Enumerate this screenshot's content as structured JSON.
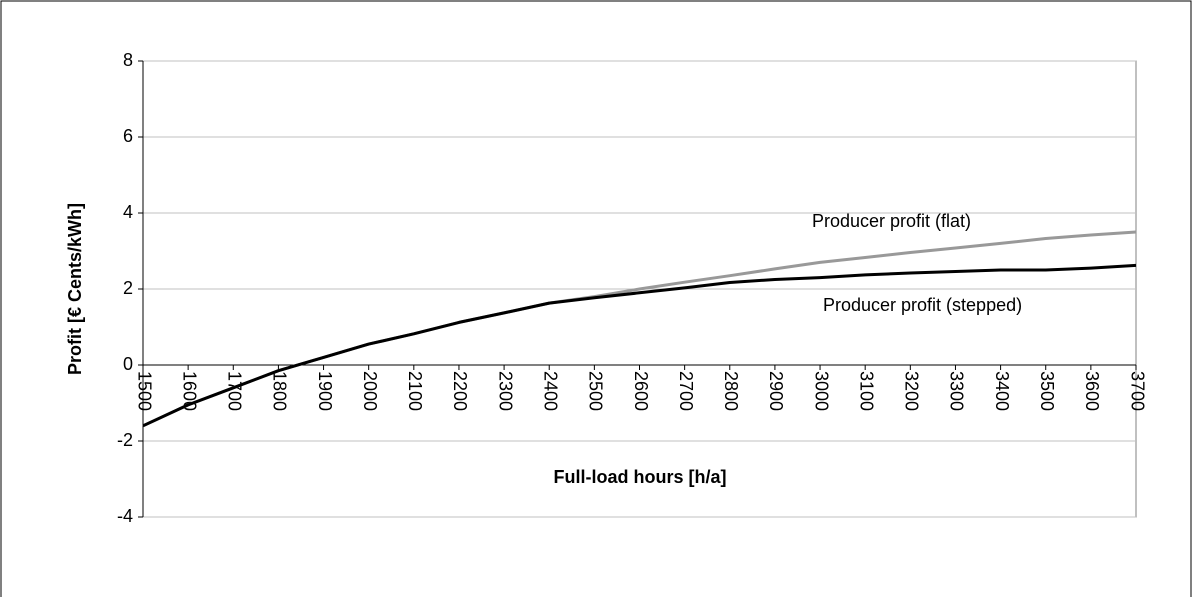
{
  "chart_data": {
    "type": "line",
    "xlabel": "Full-load hours [h/a]",
    "ylabel": "Profit [€ Cents/kWh]",
    "x": [
      1500,
      1600,
      1700,
      1800,
      1900,
      2000,
      2100,
      2200,
      2300,
      2400,
      2500,
      2600,
      2700,
      2800,
      2900,
      3000,
      3100,
      3200,
      3300,
      3400,
      3500,
      3600,
      3700
    ],
    "series": [
      {
        "name": "Producer profit (flat)",
        "color": "#999999",
        "values": [
          -1.6,
          -1.05,
          -0.6,
          -0.15,
          0.2,
          0.55,
          0.82,
          1.12,
          1.37,
          1.63,
          1.8,
          2.0,
          2.18,
          2.35,
          2.53,
          2.7,
          2.83,
          2.96,
          3.08,
          3.2,
          3.33,
          3.42,
          3.5
        ]
      },
      {
        "name": "Producer profit (stepped)",
        "color": "#000000",
        "values": [
          -1.6,
          -1.05,
          -0.6,
          -0.15,
          0.2,
          0.55,
          0.82,
          1.12,
          1.37,
          1.63,
          1.77,
          1.9,
          2.03,
          2.17,
          2.25,
          2.3,
          2.37,
          2.42,
          2.46,
          2.5,
          2.5,
          2.55,
          2.62
        ]
      }
    ],
    "xlim": [
      1500,
      3700
    ],
    "xticks": [
      1500,
      1600,
      1700,
      1800,
      1900,
      2000,
      2100,
      2200,
      2300,
      2400,
      2500,
      2600,
      2700,
      2800,
      2900,
      3000,
      3100,
      3200,
      3300,
      3400,
      3500,
      3600,
      3700
    ],
    "ylim": [
      -4,
      8
    ],
    "yticks": [
      -4,
      -2,
      0,
      2,
      4,
      6,
      8
    ],
    "grid": true
  }
}
